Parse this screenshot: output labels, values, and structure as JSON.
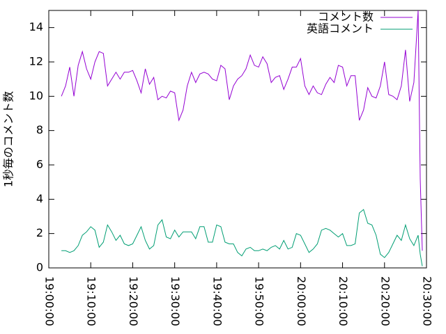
{
  "chart_data": {
    "type": "line",
    "y_label": "1秒毎のコメント数",
    "x": [
      "19:03:00",
      "19:04:00",
      "19:05:00",
      "19:06:00",
      "19:07:00",
      "19:08:00",
      "19:09:00",
      "19:10:00",
      "19:11:00",
      "19:12:00",
      "19:13:00",
      "19:14:00",
      "19:15:00",
      "19:16:00",
      "19:17:00",
      "19:18:00",
      "19:19:00",
      "19:20:00",
      "19:21:00",
      "19:22:00",
      "19:23:00",
      "19:24:00",
      "19:25:00",
      "19:26:00",
      "19:27:00",
      "19:28:00",
      "19:29:00",
      "19:30:00",
      "19:31:00",
      "19:32:00",
      "19:33:00",
      "19:34:00",
      "19:35:00",
      "19:36:00",
      "19:37:00",
      "19:38:00",
      "19:39:00",
      "19:40:00",
      "19:41:00",
      "19:42:00",
      "19:43:00",
      "19:44:00",
      "19:45:00",
      "19:46:00",
      "19:47:00",
      "19:48:00",
      "19:49:00",
      "19:50:00",
      "19:51:00",
      "19:52:00",
      "19:53:00",
      "19:54:00",
      "19:55:00",
      "19:56:00",
      "19:57:00",
      "19:58:00",
      "19:59:00",
      "20:00:00",
      "20:01:00",
      "20:02:00",
      "20:03:00",
      "20:04:00",
      "20:05:00",
      "20:06:00",
      "20:07:00",
      "20:08:00",
      "20:09:00",
      "20:10:00",
      "20:11:00",
      "20:12:00",
      "20:13:00",
      "20:14:00",
      "20:15:00",
      "20:16:00",
      "20:17:00",
      "20:18:00",
      "20:19:00",
      "20:20:00",
      "20:21:00",
      "20:22:00",
      "20:23:00",
      "20:24:00",
      "20:25:00",
      "20:26:00",
      "20:27:00",
      "20:28:00",
      "20:28:30",
      "20:29:00"
    ],
    "series": [
      {
        "name": "コメント数",
        "color": "#9400d3",
        "values": [
          10.0,
          10.6,
          11.7,
          10.0,
          11.8,
          12.6,
          11.6,
          11.0,
          12.0,
          12.6,
          12.5,
          10.6,
          11.0,
          11.4,
          11.0,
          11.4,
          11.4,
          11.5,
          10.9,
          10.2,
          11.6,
          10.7,
          11.1,
          9.8,
          10.0,
          9.9,
          10.3,
          10.2,
          8.6,
          9.2,
          10.6,
          11.4,
          10.8,
          11.3,
          11.4,
          11.3,
          11.0,
          10.9,
          11.8,
          11.6,
          9.8,
          10.6,
          11.0,
          11.2,
          11.6,
          12.4,
          11.8,
          11.7,
          12.3,
          11.9,
          10.8,
          11.1,
          11.2,
          10.4,
          11.0,
          11.7,
          11.7,
          12.2,
          10.6,
          10.1,
          10.6,
          10.2,
          10.1,
          10.7,
          11.1,
          10.8,
          11.8,
          11.7,
          10.6,
          11.2,
          11.2,
          8.6,
          9.2,
          10.5,
          10.0,
          9.9,
          10.6,
          12.0,
          10.1,
          10.0,
          9.8,
          10.6,
          12.7,
          9.7,
          10.8,
          15.0,
          5.2,
          1.0
        ]
      },
      {
        "name": "英語コメント",
        "color": "#009e73",
        "values": [
          1.0,
          1.0,
          0.9,
          1.0,
          1.3,
          1.9,
          2.1,
          2.4,
          2.2,
          1.2,
          1.5,
          2.5,
          2.1,
          1.6,
          1.9,
          1.4,
          1.3,
          1.4,
          1.9,
          2.4,
          1.6,
          1.1,
          1.3,
          2.5,
          2.8,
          1.8,
          1.7,
          2.2,
          1.8,
          2.1,
          2.1,
          2.1,
          1.7,
          2.4,
          2.4,
          1.5,
          1.5,
          2.5,
          2.4,
          1.5,
          1.4,
          1.4,
          0.9,
          0.7,
          1.1,
          1.2,
          1.0,
          1.0,
          1.1,
          1.0,
          1.2,
          1.3,
          1.1,
          1.6,
          1.1,
          1.2,
          2.0,
          1.9,
          1.4,
          0.9,
          1.1,
          1.4,
          2.2,
          2.3,
          2.2,
          2.0,
          1.8,
          2.0,
          1.3,
          1.3,
          1.4,
          3.2,
          3.4,
          2.6,
          2.5,
          1.9,
          0.8,
          0.6,
          0.9,
          1.4,
          1.9,
          1.6,
          2.5,
          1.7,
          1.3,
          1.9,
          0.8,
          0.1
        ]
      }
    ],
    "xlim": [
      "19:00:00",
      "20:30:00"
    ],
    "xticks": [
      "19:00:00",
      "19:10:00",
      "19:20:00",
      "19:30:00",
      "19:40:00",
      "19:50:00",
      "20:00:00",
      "20:10:00",
      "20:20:00",
      "20:30:00"
    ],
    "ylim": [
      0,
      15
    ],
    "yticks": [
      0,
      2,
      4,
      6,
      8,
      10,
      12,
      14
    ],
    "legend": "top-right"
  }
}
